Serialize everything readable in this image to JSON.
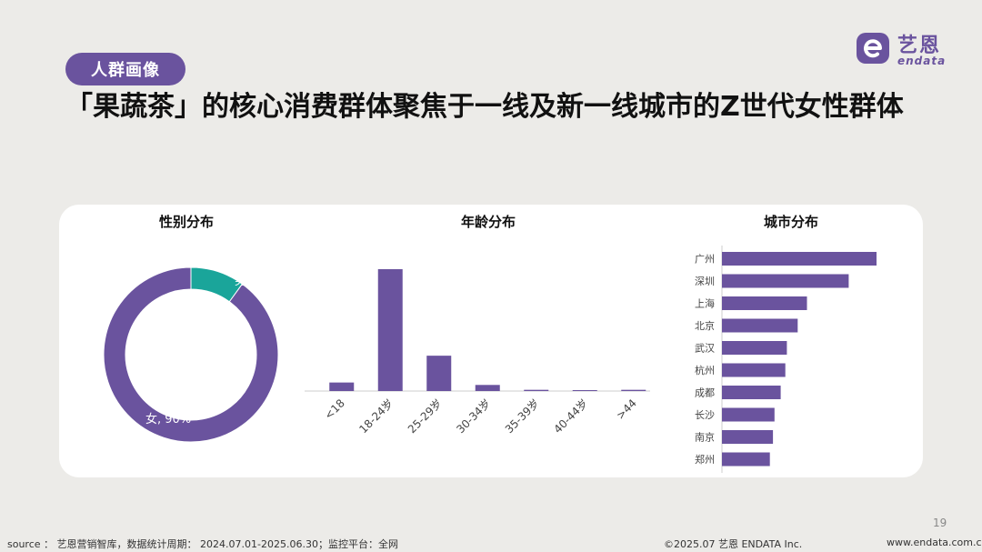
{
  "header": {
    "tag": "人群画像",
    "title": "「果蔬茶」的核心消费群体聚焦于一线及新一线城市的Z世代女性群体"
  },
  "logo": {
    "cn": "艺恩",
    "en": "endata"
  },
  "colors": {
    "primary": "#6a539e",
    "accent": "#1aa59a"
  },
  "chart_data": [
    {
      "type": "pie",
      "title": "性别分布",
      "labels": [
        "男",
        "女"
      ],
      "values": [
        10,
        90
      ],
      "display": [
        "男, 10%",
        "女, 90%"
      ],
      "colors": [
        "#1aa59a",
        "#6a539e"
      ],
      "donut": true
    },
    {
      "type": "bar",
      "title": "年龄分布",
      "categories": [
        "<18",
        "18-24岁",
        "25-29岁",
        "30-34岁",
        "35-39岁",
        "40-44岁",
        ">44"
      ],
      "values": [
        0.07,
        1.0,
        0.29,
        0.05,
        0.01,
        0.005,
        0.01
      ],
      "grid": false
    },
    {
      "type": "bar",
      "orientation": "horizontal",
      "title": "城市分布",
      "categories": [
        "广州",
        "深圳",
        "上海",
        "北京",
        "武汉",
        "杭州",
        "成都",
        "长沙",
        "南京",
        "郑州"
      ],
      "values": [
        1.0,
        0.82,
        0.55,
        0.49,
        0.42,
        0.41,
        0.38,
        0.34,
        0.33,
        0.31
      ],
      "grid": false
    }
  ],
  "footer": {
    "source": "source ： 艺恩营销智库，数据统计周期： 2024.07.01-2025.06.30；监控平台：全网",
    "copyright": "©2025.07  艺恩 ENDATA Inc.",
    "website": "www.endata.com.cn",
    "page": "19"
  }
}
